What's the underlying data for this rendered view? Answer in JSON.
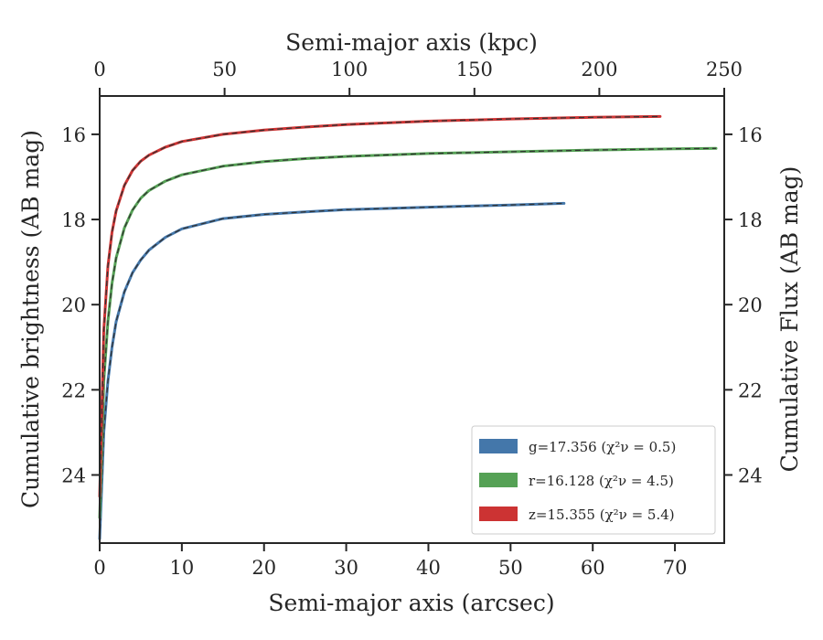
{
  "chart_data": {
    "type": "line",
    "xlabel": "Semi-major axis (arcsec)",
    "ylabel": "Cumulative brightness (AB mag)",
    "top_xlabel": "Semi-major axis (kpc)",
    "right_ylabel": "Cumulative Flux (AB mag)",
    "xlim": [
      0,
      76
    ],
    "top_xlim": [
      0,
      250
    ],
    "ylim": [
      25.6,
      15.1
    ],
    "y_inverted": true,
    "x_ticks": [
      "0",
      "10",
      "20",
      "30",
      "40",
      "50",
      "60",
      "70"
    ],
    "x_tick_values": [
      0,
      10,
      20,
      30,
      40,
      50,
      60,
      70
    ],
    "top_ticks": [
      "0",
      "50",
      "100",
      "150",
      "200",
      "250"
    ],
    "top_tick_values": [
      0,
      50,
      100,
      150,
      200,
      250
    ],
    "y_ticks": [
      "16",
      "18",
      "20",
      "22",
      "24"
    ],
    "y_tick_values": [
      16,
      18,
      20,
      22,
      24
    ],
    "grid": false,
    "legend_position": "lower-right",
    "series": [
      {
        "name": "g=17.356",
        "chi": "(χ²ν = 0.5)",
        "color": "#4477aa",
        "x": [
          0,
          0.5,
          1,
          1.5,
          2,
          3,
          4,
          5,
          6,
          8,
          10,
          15,
          20,
          25,
          30,
          40,
          50,
          56.5
        ],
        "y": [
          25.5,
          23.0,
          21.8,
          21.0,
          20.4,
          19.7,
          19.25,
          18.95,
          18.72,
          18.42,
          18.22,
          17.98,
          17.88,
          17.82,
          17.77,
          17.71,
          17.66,
          17.62
        ]
      },
      {
        "name": "r=16.128",
        "chi": "(χ²ν = 4.5)",
        "color": "#55a155",
        "x": [
          0,
          0.5,
          1,
          1.5,
          2,
          3,
          4,
          5,
          6,
          8,
          10,
          15,
          20,
          25,
          30,
          40,
          50,
          60,
          70,
          75
        ],
        "y": [
          25.0,
          21.8,
          20.4,
          19.5,
          18.9,
          18.2,
          17.78,
          17.5,
          17.32,
          17.1,
          16.95,
          16.75,
          16.64,
          16.57,
          16.52,
          16.45,
          16.41,
          16.37,
          16.34,
          16.33
        ]
      },
      {
        "name": "z=15.355",
        "chi": "(χ²ν = 5.4)",
        "color": "#cc3333",
        "x": [
          0,
          0.5,
          1,
          1.5,
          2,
          3,
          4,
          5,
          6,
          8,
          10,
          15,
          20,
          25,
          30,
          40,
          50,
          60,
          68.2
        ],
        "y": [
          24.5,
          20.6,
          19.1,
          18.3,
          17.8,
          17.2,
          16.85,
          16.63,
          16.49,
          16.3,
          16.17,
          16.0,
          15.9,
          15.83,
          15.77,
          15.69,
          15.64,
          15.6,
          15.58
        ]
      }
    ]
  }
}
